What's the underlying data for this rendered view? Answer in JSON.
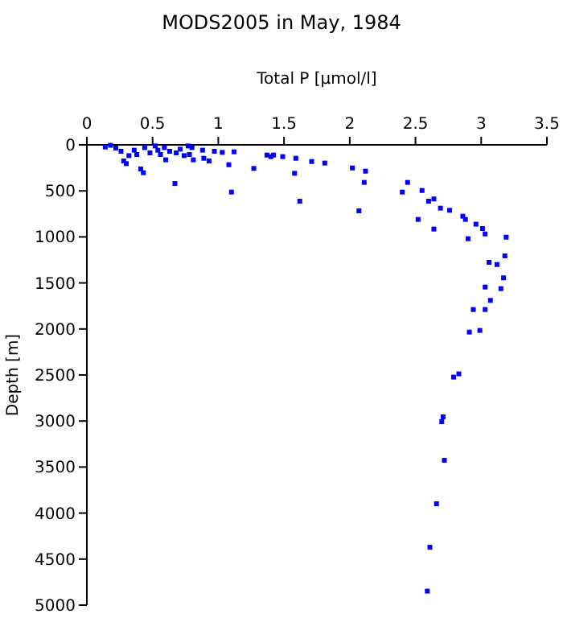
{
  "chart_data": {
    "type": "scatter",
    "title": "MODS2005 in May, 1984",
    "xlabel": "Total P [µmol/l]",
    "ylabel": "Depth [m]",
    "xlim": [
      0,
      3.5
    ],
    "xticks": [
      0,
      0.5,
      1,
      1.5,
      2,
      2.5,
      3,
      3.5
    ],
    "ylim": [
      5000,
      0
    ],
    "yticks": [
      0,
      500,
      1000,
      1500,
      2000,
      2500,
      3000,
      3500,
      4000,
      4500,
      5000
    ],
    "grid": false,
    "marker": "square",
    "series": [
      {
        "color": "#0000ff",
        "x": [
          0.14,
          0.18,
          0.22,
          0.26,
          0.28,
          0.3,
          0.32,
          0.36,
          0.38,
          0.41,
          0.43,
          0.44,
          0.48,
          0.52,
          0.54,
          0.56,
          0.59,
          0.6,
          0.63,
          0.67,
          0.68,
          0.71,
          0.74,
          0.77,
          0.8,
          0.81,
          0.78,
          0.88,
          0.89,
          0.93,
          0.97,
          1.03,
          1.12,
          1.08,
          1.1,
          1.27,
          1.37,
          1.4,
          1.42,
          1.49,
          1.58,
          1.59,
          1.62,
          1.71,
          1.81,
          2.02,
          2.07,
          2.11,
          2.12,
          2.4,
          2.44,
          2.52,
          2.55,
          2.6,
          2.64,
          2.64,
          2.69,
          2.76,
          2.86,
          2.88,
          2.9,
          2.96,
          3.01,
          3.03,
          3.19,
          3.18,
          3.06,
          3.12,
          3.17,
          3.15,
          3.03,
          3.07,
          2.94,
          3.03,
          2.91,
          2.99,
          2.79,
          2.83,
          2.71,
          2.7,
          2.72,
          2.66,
          2.61,
          2.59
        ],
        "values": [
          23,
          5,
          35,
          70,
          175,
          204,
          117,
          58,
          105,
          262,
          303,
          30,
          87,
          12,
          58,
          105,
          30,
          163,
          70,
          420,
          87,
          47,
          117,
          12,
          30,
          163,
          105,
          58,
          146,
          175,
          70,
          82,
          76,
          216,
          513,
          256,
          111,
          128,
          111,
          128,
          309,
          146,
          612,
          181,
          198,
          251,
          717,
          408,
          286,
          513,
          408,
          810,
          496,
          612,
          588,
          915,
          688,
          711,
          775,
          810,
          1020,
          862,
          909,
          968,
          1003,
          1206,
          1276,
          1300,
          1445,
          1562,
          1545,
          1690,
          1789,
          1789,
          2034,
          2016,
          2523,
          2488,
          2955,
          3007,
          3427,
          3899,
          4371,
          4848
        ]
      }
    ]
  }
}
